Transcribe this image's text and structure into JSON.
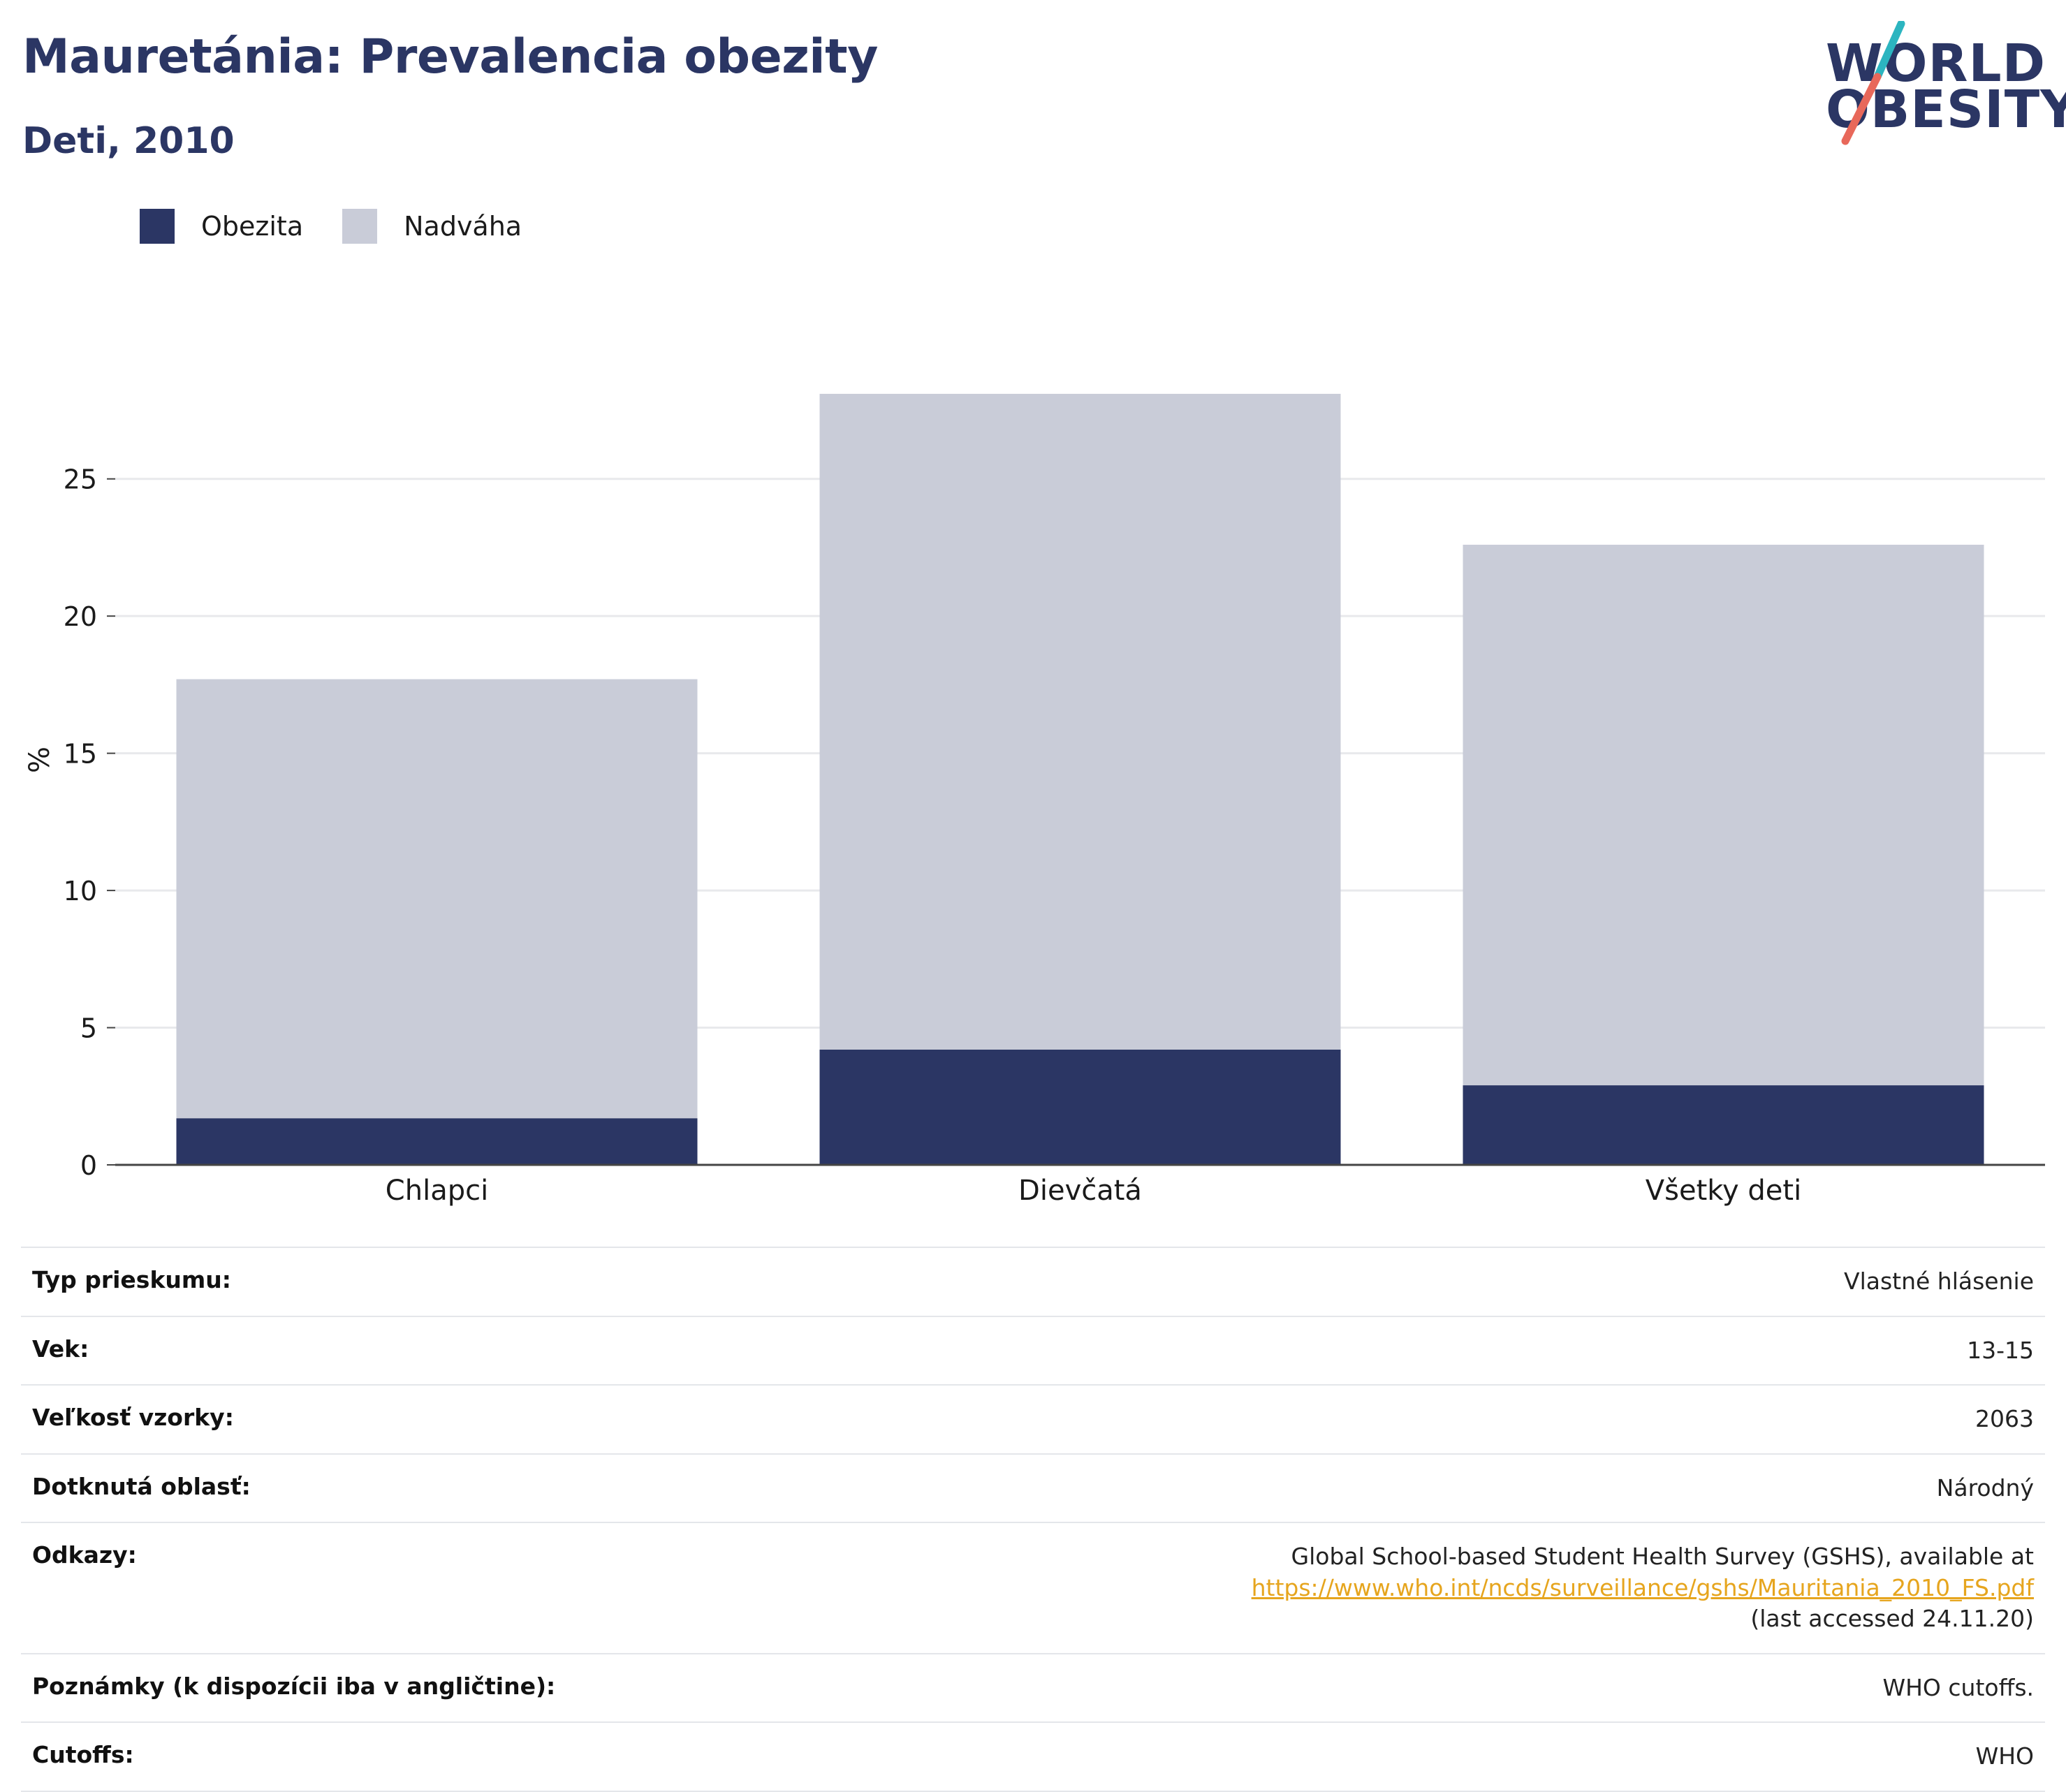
{
  "header": {
    "title": "Mauretánia: Prevalencia obezity",
    "subtitle": "Deti, 2010"
  },
  "logo": {
    "line1": "WORLD",
    "line2": "OBESITY",
    "accent_teal": "#2cb5c0",
    "accent_red": "#e8685a"
  },
  "legend": [
    {
      "label": "Obezita",
      "color": "#2b3664"
    },
    {
      "label": "Nadváha",
      "color": "#c9ccd8"
    }
  ],
  "chart_data": {
    "type": "bar",
    "stacked": true,
    "categories": [
      "Chlapci",
      "Dievčatá",
      "Všetky deti"
    ],
    "series": [
      {
        "name": "Obezita",
        "color": "#2b3664",
        "values": [
          1.7,
          4.2,
          2.9
        ]
      },
      {
        "name": "Nadváha",
        "color": "#c9ccd8",
        "values": [
          16.0,
          23.9,
          19.7
        ]
      }
    ],
    "ylabel": "%",
    "ylim": [
      0,
      28.2
    ],
    "yticks": [
      0,
      5,
      10,
      15,
      20,
      25
    ],
    "grid": true,
    "legend_position": "top-left"
  },
  "info": [
    {
      "label": "Typ prieskumu:",
      "value": "Vlastné hlásenie"
    },
    {
      "label": "Vek:",
      "value": "13-15"
    },
    {
      "label": "Veľkosť vzorky:",
      "value": "2063"
    },
    {
      "label": "Dotknutá oblasť:",
      "value": "Národný"
    },
    {
      "label": "Odkazy:",
      "value_prefix": "Global School-based Student Health Survey (GSHS), available at ",
      "link": "https://www.who.int/ncds/surveillance/gshs/Mauritania_2010_FS.pdf",
      "value_suffix": "(last accessed 24.11.20)"
    },
    {
      "label": "Poznámky (k dispozícii iba v angličtine):",
      "value": "WHO cutoffs."
    },
    {
      "label": "Cutoffs:",
      "value": "WHO"
    }
  ]
}
